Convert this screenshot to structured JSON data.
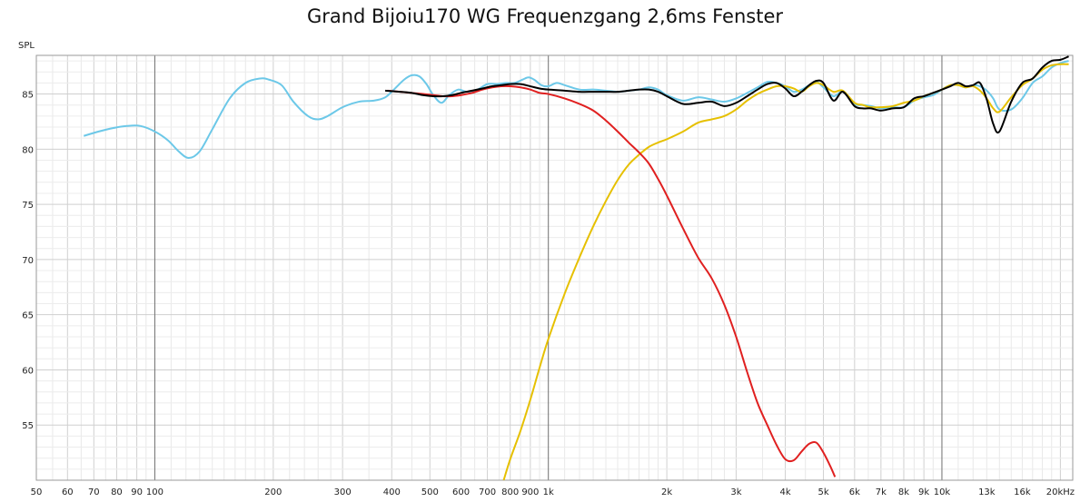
{
  "chart_data": {
    "type": "line",
    "title": "Grand Bijoiu170 WG Frequenzgang 2,6ms Fenster",
    "ylabel": "SPL",
    "xlabel": "",
    "x_scale": "log",
    "xlim": [
      50,
      21500
    ],
    "ylim": [
      50,
      88.5
    ],
    "grid": true,
    "legend": "none",
    "x_ticks": [
      {
        "v": 50,
        "label": "50"
      },
      {
        "v": 60,
        "label": "60"
      },
      {
        "v": 70,
        "label": "70"
      },
      {
        "v": 80,
        "label": "80"
      },
      {
        "v": 90,
        "label": "90"
      },
      {
        "v": 100,
        "label": "100"
      },
      {
        "v": 200,
        "label": "200"
      },
      {
        "v": 300,
        "label": "300"
      },
      {
        "v": 400,
        "label": "400"
      },
      {
        "v": 500,
        "label": "500"
      },
      {
        "v": 600,
        "label": "600"
      },
      {
        "v": 700,
        "label": "700"
      },
      {
        "v": 800,
        "label": "800"
      },
      {
        "v": 900,
        "label": "900"
      },
      {
        "v": 1000,
        "label": "1k"
      },
      {
        "v": 2000,
        "label": "2k"
      },
      {
        "v": 3000,
        "label": "3k"
      },
      {
        "v": 4000,
        "label": "4k"
      },
      {
        "v": 5000,
        "label": "5k"
      },
      {
        "v": 6000,
        "label": "6k"
      },
      {
        "v": 7000,
        "label": "7k"
      },
      {
        "v": 8000,
        "label": "8k"
      },
      {
        "v": 9000,
        "label": "9k"
      },
      {
        "v": 10000,
        "label": "10k"
      },
      {
        "v": 13000,
        "label": "13k"
      },
      {
        "v": 16000,
        "label": "16k"
      },
      {
        "v": 20000,
        "label": "20kHz"
      }
    ],
    "y_ticks": [
      {
        "v": 55,
        "label": "55"
      },
      {
        "v": 60,
        "label": "60"
      },
      {
        "v": 65,
        "label": "65"
      },
      {
        "v": 70,
        "label": "70"
      },
      {
        "v": 75,
        "label": "75"
      },
      {
        "v": 80,
        "label": "80"
      },
      {
        "v": 85,
        "label": "85"
      }
    ],
    "series": [
      {
        "color": "#6cc8e8",
        "x": [
          66,
          72,
          78,
          85,
          92,
          100,
          108,
          115,
          122,
          130,
          140,
          155,
          170,
          185,
          195,
          210,
          225,
          245,
          260,
          275,
          300,
          330,
          360,
          385,
          405,
          430,
          450,
          470,
          490,
          510,
          535,
          560,
          590,
          620,
          660,
          700,
          740,
          780,
          820,
          860,
          890,
          920,
          960,
          1000,
          1050,
          1100,
          1200,
          1300,
          1400,
          1500,
          1600,
          1700,
          1800,
          1900,
          2000,
          2200,
          2400,
          2600,
          2800,
          3000,
          3200,
          3400,
          3600,
          3800,
          4000,
          4200,
          4400,
          4600,
          4800,
          5000,
          5300,
          5600,
          6000,
          6300,
          6600,
          7000,
          7500,
          8000,
          8500,
          9000,
          9500,
          10000,
          10500,
          11000,
          11500,
          12000,
          12500,
          13000,
          13500,
          14000,
          15000,
          16000,
          17000,
          18000,
          19000,
          20000,
          21000
        ],
        "values": [
          81.2,
          81.6,
          81.9,
          82.1,
          82.1,
          81.6,
          80.8,
          79.8,
          79.2,
          79.8,
          81.8,
          84.6,
          86.0,
          86.4,
          86.3,
          85.8,
          84.3,
          83.0,
          82.7,
          83.0,
          83.8,
          84.3,
          84.4,
          84.7,
          85.4,
          86.3,
          86.7,
          86.6,
          85.9,
          84.9,
          84.2,
          84.9,
          85.4,
          85.2,
          85.4,
          85.9,
          85.9,
          86.0,
          86.0,
          86.3,
          86.5,
          86.3,
          85.8,
          85.7,
          86.0,
          85.8,
          85.4,
          85.4,
          85.3,
          85.2,
          85.3,
          85.4,
          85.6,
          85.4,
          84.9,
          84.4,
          84.7,
          84.5,
          84.3,
          84.6,
          85.1,
          85.6,
          86.1,
          86.0,
          85.7,
          85.2,
          85.4,
          85.8,
          86.1,
          85.6,
          84.8,
          85.2,
          84.1,
          84.0,
          83.9,
          83.7,
          83.8,
          83.8,
          84.4,
          84.7,
          84.9,
          85.4,
          85.8,
          85.8,
          85.6,
          85.8,
          85.7,
          85.3,
          84.6,
          83.6,
          83.6,
          84.6,
          86.0,
          86.6,
          87.4,
          87.8,
          88.0
        ]
      },
      {
        "color": "#e6c000",
        "x": [
          770,
          800,
          850,
          900,
          950,
          1000,
          1100,
          1200,
          1300,
          1400,
          1500,
          1600,
          1700,
          1800,
          1900,
          2000,
          2200,
          2400,
          2600,
          2800,
          3000,
          3200,
          3400,
          3600,
          3800,
          4000,
          4200,
          4400,
          4600,
          4800,
          5000,
          5300,
          5600,
          6000,
          6300,
          6600,
          7000,
          7500,
          8000,
          8500,
          9000,
          9500,
          10000,
          10500,
          11000,
          11500,
          12000,
          12500,
          13000,
          13500,
          14000,
          15000,
          16000,
          17000,
          18000,
          19000,
          20000,
          21000
        ],
        "values": [
          50.0,
          51.9,
          54.5,
          57.3,
          60.2,
          62.8,
          66.9,
          70.2,
          73.0,
          75.3,
          77.2,
          78.6,
          79.5,
          80.2,
          80.6,
          80.9,
          81.6,
          82.4,
          82.7,
          83.0,
          83.6,
          84.4,
          85.0,
          85.4,
          85.7,
          85.7,
          85.5,
          85.2,
          85.7,
          86.0,
          85.8,
          85.2,
          85.3,
          84.2,
          84.0,
          83.8,
          83.8,
          83.9,
          84.2,
          84.4,
          84.8,
          85.1,
          85.4,
          85.8,
          85.8,
          85.6,
          85.7,
          85.3,
          84.6,
          83.7,
          83.4,
          84.7,
          85.8,
          86.4,
          87.2,
          87.6,
          87.7,
          87.7
        ]
      },
      {
        "color": "#e02020",
        "x": [
          390,
          420,
          450,
          480,
          510,
          540,
          570,
          600,
          640,
          680,
          720,
          760,
          800,
          850,
          900,
          950,
          1000,
          1100,
          1200,
          1300,
          1400,
          1500,
          1600,
          1700,
          1800,
          1900,
          2000,
          2200,
          2400,
          2600,
          2800,
          3000,
          3200,
          3400,
          3600,
          3800,
          4000,
          4200,
          4400,
          4600,
          4800,
          5000,
          5200,
          5350
        ],
        "values": [
          85.3,
          85.2,
          85.1,
          85.0,
          84.9,
          84.8,
          84.8,
          84.9,
          85.1,
          85.4,
          85.6,
          85.7,
          85.7,
          85.6,
          85.4,
          85.1,
          85.0,
          84.6,
          84.1,
          83.5,
          82.6,
          81.6,
          80.6,
          79.7,
          78.7,
          77.3,
          75.8,
          72.8,
          70.2,
          68.3,
          65.9,
          63.0,
          59.8,
          57.0,
          55.0,
          53.2,
          51.9,
          51.8,
          52.6,
          53.3,
          53.4,
          52.5,
          51.3,
          50.3
        ]
      },
      {
        "color": "#000000",
        "x": [
          385,
          420,
          450,
          480,
          510,
          540,
          570,
          600,
          640,
          680,
          720,
          760,
          800,
          850,
          900,
          950,
          1000,
          1100,
          1200,
          1300,
          1400,
          1500,
          1600,
          1700,
          1800,
          1900,
          2000,
          2200,
          2400,
          2600,
          2800,
          3000,
          3200,
          3400,
          3600,
          3800,
          4000,
          4200,
          4400,
          4600,
          4800,
          5000,
          5300,
          5600,
          6000,
          6300,
          6600,
          7000,
          7500,
          8000,
          8500,
          9000,
          9500,
          10000,
          10500,
          11000,
          11500,
          12000,
          12500,
          13000,
          13500,
          14000,
          15000,
          16000,
          17000,
          18000,
          19000,
          20000,
          21000
        ],
        "values": [
          85.3,
          85.2,
          85.1,
          84.9,
          84.8,
          84.8,
          84.9,
          85.1,
          85.3,
          85.5,
          85.7,
          85.8,
          85.9,
          85.9,
          85.7,
          85.5,
          85.4,
          85.3,
          85.2,
          85.2,
          85.2,
          85.2,
          85.3,
          85.4,
          85.4,
          85.2,
          84.8,
          84.1,
          84.2,
          84.3,
          83.9,
          84.2,
          84.8,
          85.4,
          85.9,
          86.0,
          85.5,
          84.8,
          85.2,
          85.8,
          86.2,
          86.0,
          84.4,
          85.2,
          83.9,
          83.7,
          83.7,
          83.5,
          83.7,
          83.8,
          84.6,
          84.8,
          85.1,
          85.4,
          85.7,
          86.0,
          85.7,
          85.8,
          86.0,
          84.5,
          82.3,
          81.6,
          84.3,
          86.0,
          86.4,
          87.4,
          88.0,
          88.1,
          88.4
        ]
      }
    ]
  }
}
